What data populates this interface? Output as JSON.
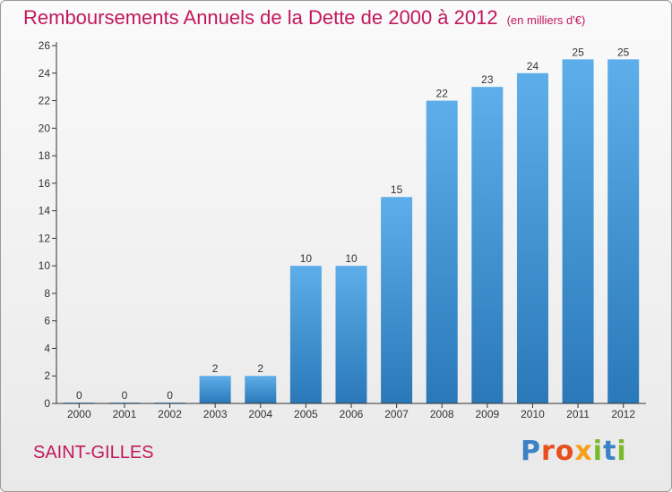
{
  "title": "Remboursements Annuels de la Dette de 2000 à 2012",
  "unit": "(en milliers d'€)",
  "commune": "SAINT-GILLES",
  "logo": "Proxiti",
  "colors": {
    "title": "#c2185b",
    "bar_top": "#5daeea",
    "bar_bottom": "#2a78b8",
    "logo_letters": [
      "#3a82c4",
      "#e94e1b",
      "#e94e1b",
      "#f5a01a",
      "#7ab929",
      "#3a82c4",
      "#7ab929"
    ]
  },
  "chart_data": {
    "type": "bar",
    "title": "Remboursements Annuels de la Dette de 2000 à 2012",
    "xlabel": "",
    "ylabel": "",
    "categories": [
      "2000",
      "2001",
      "2002",
      "2003",
      "2004",
      "2005",
      "2006",
      "2007",
      "2008",
      "2009",
      "2010",
      "2011",
      "2012"
    ],
    "values": [
      0,
      0,
      0,
      2,
      2,
      10,
      10,
      15,
      22,
      23,
      24,
      25,
      25
    ],
    "ylim": [
      0,
      26
    ],
    "yticks": [
      0,
      2,
      4,
      6,
      8,
      10,
      12,
      14,
      16,
      18,
      20,
      22,
      24,
      26
    ],
    "grid": false,
    "legend": "none"
  }
}
